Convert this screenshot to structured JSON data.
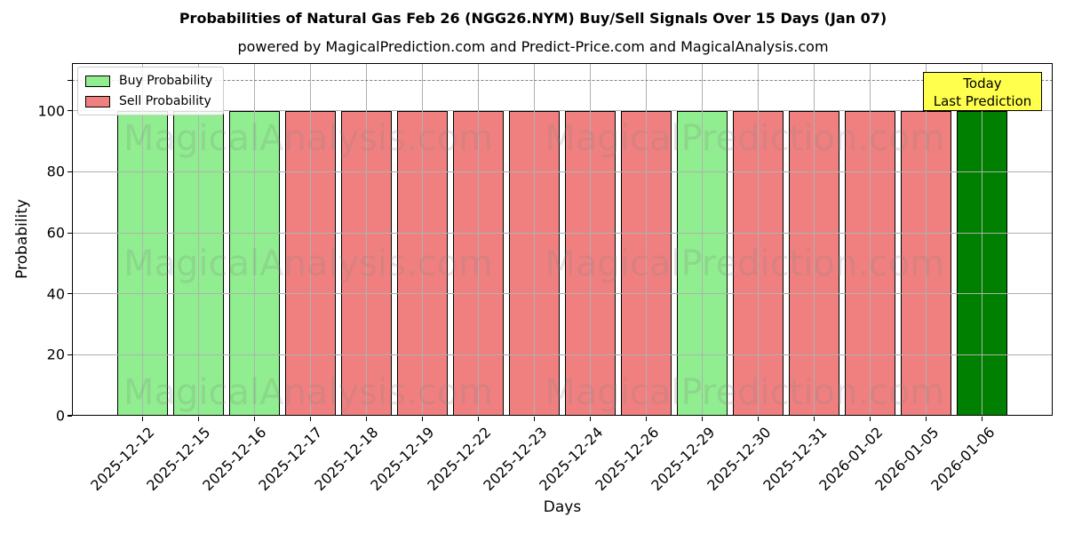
{
  "chart_data": {
    "type": "bar",
    "title": "Probabilities of Natural Gas Feb 26 (NGG26.NYM) Buy/Sell Signals Over 15 Days (Jan 07)",
    "subtitle": "powered by MagicalPrediction.com and Predict-Price.com and MagicalAnalysis.com",
    "xlabel": "Days",
    "ylabel": "Probability",
    "categories": [
      "2025-12-12",
      "2025-12-15",
      "2025-12-16",
      "2025-12-17",
      "2025-12-18",
      "2025-12-19",
      "2025-12-22",
      "2025-12-23",
      "2025-12-24",
      "2025-12-26",
      "2025-12-29",
      "2025-12-30",
      "2025-12-31",
      "2026-01-02",
      "2026-01-05",
      "2026-01-06"
    ],
    "values": [
      100,
      100,
      100,
      100,
      100,
      100,
      100,
      100,
      100,
      100,
      100,
      100,
      100,
      100,
      100,
      100
    ],
    "signals": [
      "buy",
      "buy",
      "buy",
      "sell",
      "sell",
      "sell",
      "sell",
      "sell",
      "sell",
      "sell",
      "buy",
      "sell",
      "sell",
      "sell",
      "sell",
      "today"
    ],
    "signal_colors": {
      "buy": "#90ee90",
      "sell": "#f08080",
      "today": "#008000"
    },
    "bar_edge_color": "#000000",
    "ylim": [
      0,
      115.7
    ],
    "yticks": [
      0,
      20,
      40,
      60,
      80,
      100
    ],
    "grid": true,
    "axisbelow": false,
    "threshold_line": {
      "y": 110,
      "style": "dashed",
      "color": "#7f7f7f"
    },
    "legend": {
      "position": "upper-left",
      "items": [
        {
          "label": "Buy Probability",
          "color": "#90ee90"
        },
        {
          "label": "Sell Probability",
          "color": "#f08080"
        }
      ]
    },
    "annotation": {
      "lines": [
        "Today",
        "Last Prediction"
      ],
      "bg_color": "#ffff4d",
      "border_color": "#000000",
      "text_color": "#000000"
    },
    "watermark": {
      "texts": [
        "MagicalAnalysis.com",
        "MagicalPrediction.com"
      ],
      "rows": 3,
      "color": "#808080"
    }
  }
}
